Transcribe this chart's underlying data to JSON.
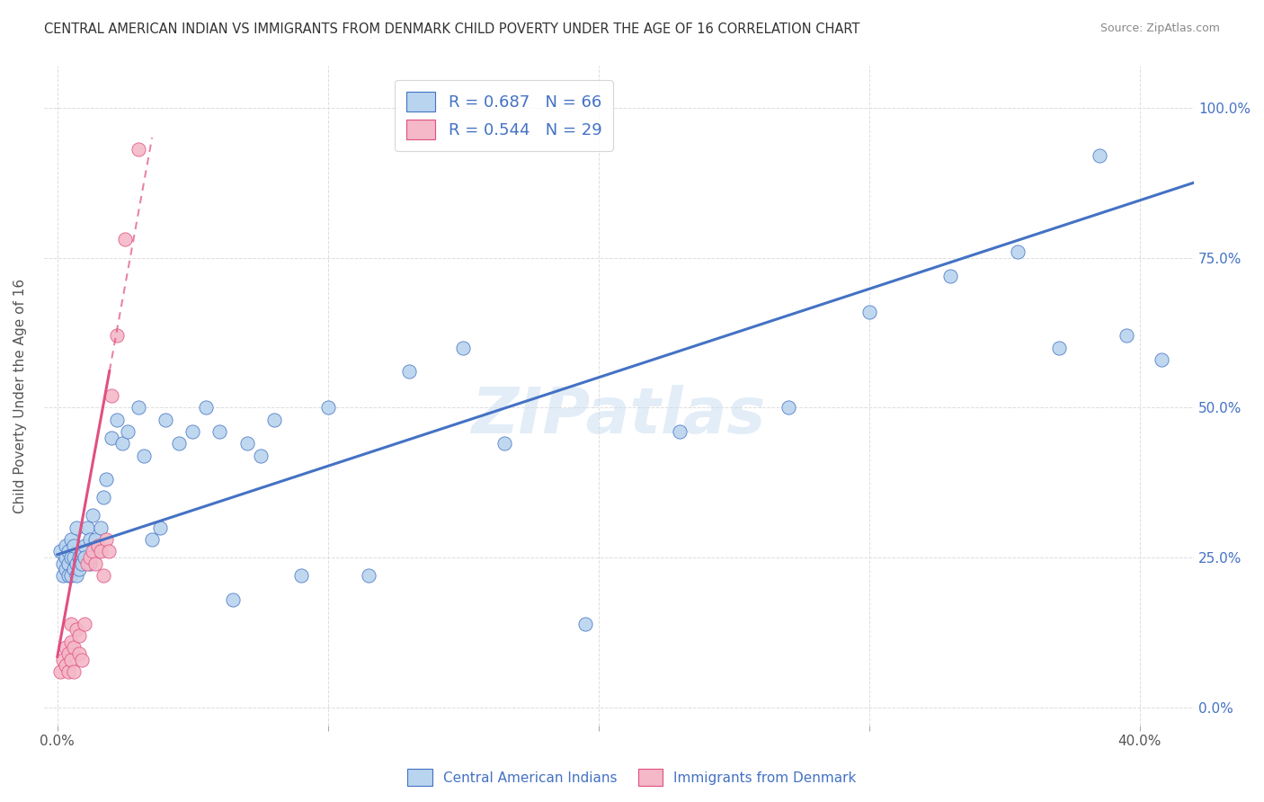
{
  "title": "CENTRAL AMERICAN INDIAN VS IMMIGRANTS FROM DENMARK CHILD POVERTY UNDER THE AGE OF 16 CORRELATION CHART",
  "source": "Source: ZipAtlas.com",
  "ylabel": "Child Poverty Under the Age of 16",
  "x_tick_positions": [
    0.0,
    0.1,
    0.2,
    0.3,
    0.4
  ],
  "x_tick_labels": [
    "0.0%",
    "",
    "",
    "",
    "40.0%"
  ],
  "y_tick_positions": [
    0.0,
    0.25,
    0.5,
    0.75,
    1.0
  ],
  "y_tick_labels_right": [
    "0.0%",
    "25.0%",
    "50.0%",
    "75.0%",
    "100.0%"
  ],
  "xlim": [
    -0.005,
    0.42
  ],
  "ylim": [
    -0.03,
    1.07
  ],
  "legend_entry1": "R = 0.687   N = 66",
  "legend_entry2": "R = 0.544   N = 29",
  "legend_color1": "#B8D4EE",
  "legend_color2": "#F4B8C8",
  "watermark": "ZIPatlas",
  "blue_scatter_x": [
    0.001,
    0.002,
    0.002,
    0.003,
    0.003,
    0.003,
    0.004,
    0.004,
    0.004,
    0.005,
    0.005,
    0.005,
    0.006,
    0.006,
    0.006,
    0.007,
    0.007,
    0.007,
    0.008,
    0.008,
    0.009,
    0.009,
    0.01,
    0.01,
    0.011,
    0.012,
    0.012,
    0.013,
    0.014,
    0.015,
    0.016,
    0.017,
    0.018,
    0.02,
    0.022,
    0.024,
    0.026,
    0.03,
    0.032,
    0.035,
    0.038,
    0.04,
    0.045,
    0.05,
    0.055,
    0.06,
    0.065,
    0.07,
    0.075,
    0.08,
    0.09,
    0.1,
    0.115,
    0.13,
    0.15,
    0.165,
    0.195,
    0.23,
    0.27,
    0.3,
    0.33,
    0.355,
    0.37,
    0.385,
    0.395,
    0.408
  ],
  "blue_scatter_y": [
    0.26,
    0.24,
    0.22,
    0.25,
    0.23,
    0.27,
    0.24,
    0.26,
    0.22,
    0.25,
    0.22,
    0.28,
    0.25,
    0.23,
    0.27,
    0.24,
    0.22,
    0.3,
    0.25,
    0.23,
    0.24,
    0.26,
    0.27,
    0.25,
    0.3,
    0.28,
    0.24,
    0.32,
    0.28,
    0.26,
    0.3,
    0.35,
    0.38,
    0.45,
    0.48,
    0.44,
    0.46,
    0.5,
    0.42,
    0.28,
    0.3,
    0.48,
    0.44,
    0.46,
    0.5,
    0.46,
    0.18,
    0.44,
    0.42,
    0.48,
    0.22,
    0.5,
    0.22,
    0.56,
    0.6,
    0.44,
    0.14,
    0.46,
    0.5,
    0.66,
    0.72,
    0.76,
    0.6,
    0.92,
    0.62,
    0.58
  ],
  "pink_scatter_x": [
    0.001,
    0.002,
    0.003,
    0.003,
    0.004,
    0.004,
    0.005,
    0.005,
    0.005,
    0.006,
    0.006,
    0.007,
    0.008,
    0.008,
    0.009,
    0.01,
    0.011,
    0.012,
    0.013,
    0.014,
    0.015,
    0.016,
    0.017,
    0.018,
    0.019,
    0.02,
    0.022,
    0.025,
    0.03
  ],
  "pink_scatter_y": [
    0.06,
    0.08,
    0.07,
    0.1,
    0.06,
    0.09,
    0.08,
    0.11,
    0.14,
    0.06,
    0.1,
    0.13,
    0.09,
    0.12,
    0.08,
    0.14,
    0.24,
    0.25,
    0.26,
    0.24,
    0.27,
    0.26,
    0.22,
    0.28,
    0.26,
    0.52,
    0.62,
    0.78,
    0.93
  ],
  "blue_line_x": [
    0.0,
    0.42
  ],
  "blue_line_y": [
    0.255,
    0.875
  ],
  "pink_line_x": [
    0.0,
    0.035
  ],
  "pink_line_y": [
    0.085,
    0.95
  ],
  "blue_scatter_color": "#B8D4EE",
  "pink_scatter_color": "#F4B8C8",
  "blue_line_color": "#4472C4",
  "pink_line_color": "#E05080",
  "grid_color": "#DDDDDD",
  "background_color": "#FFFFFF"
}
